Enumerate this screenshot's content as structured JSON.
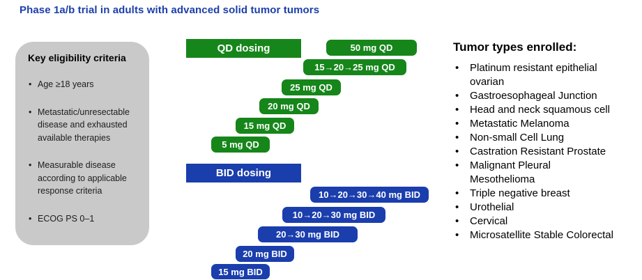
{
  "title": "Phase 1a/b trial in adults with advanced solid tumor tumors",
  "eligibility": {
    "heading": "Key eligibility criteria",
    "items": [
      "Age ≥18 years",
      "Metastatic/unresectable disease and exhausted available therapies",
      "Measurable disease according to applicable response criteria",
      "ECOG PS 0–1"
    ]
  },
  "dosing": {
    "qd_header": "QD dosing",
    "qd_bars": [
      "50 mg QD",
      "15→20→25 mg QD",
      "25 mg QD",
      "20 mg QD",
      "15 mg QD",
      "5 mg QD"
    ],
    "bid_header": "BID dosing",
    "bid_bars": [
      "10→20→30→40 mg BID",
      "10→20→30 mg BID",
      "20→30 mg BID",
      "20 mg BID",
      "15 mg BID"
    ]
  },
  "tumor_types": {
    "heading": "Tumor types enrolled:",
    "items": [
      "Platinum resistant epithelial ovarian",
      "Gastroesophageal Junction",
      "Head and neck squamous cell",
      "Metastatic Melanoma",
      "Non-small Cell Lung",
      "Castration Resistant Prostate",
      "Malignant Pleural Mesothelioma",
      "Triple negative breast",
      "Urothelial",
      "Cervical",
      "Microsatellite Stable Colorectal"
    ]
  },
  "colors": {
    "title_blue": "#1C3FA9",
    "qd_green": "#16861A",
    "bid_blue": "#1B3EAD",
    "panel_gray": "#C9C9C9"
  }
}
